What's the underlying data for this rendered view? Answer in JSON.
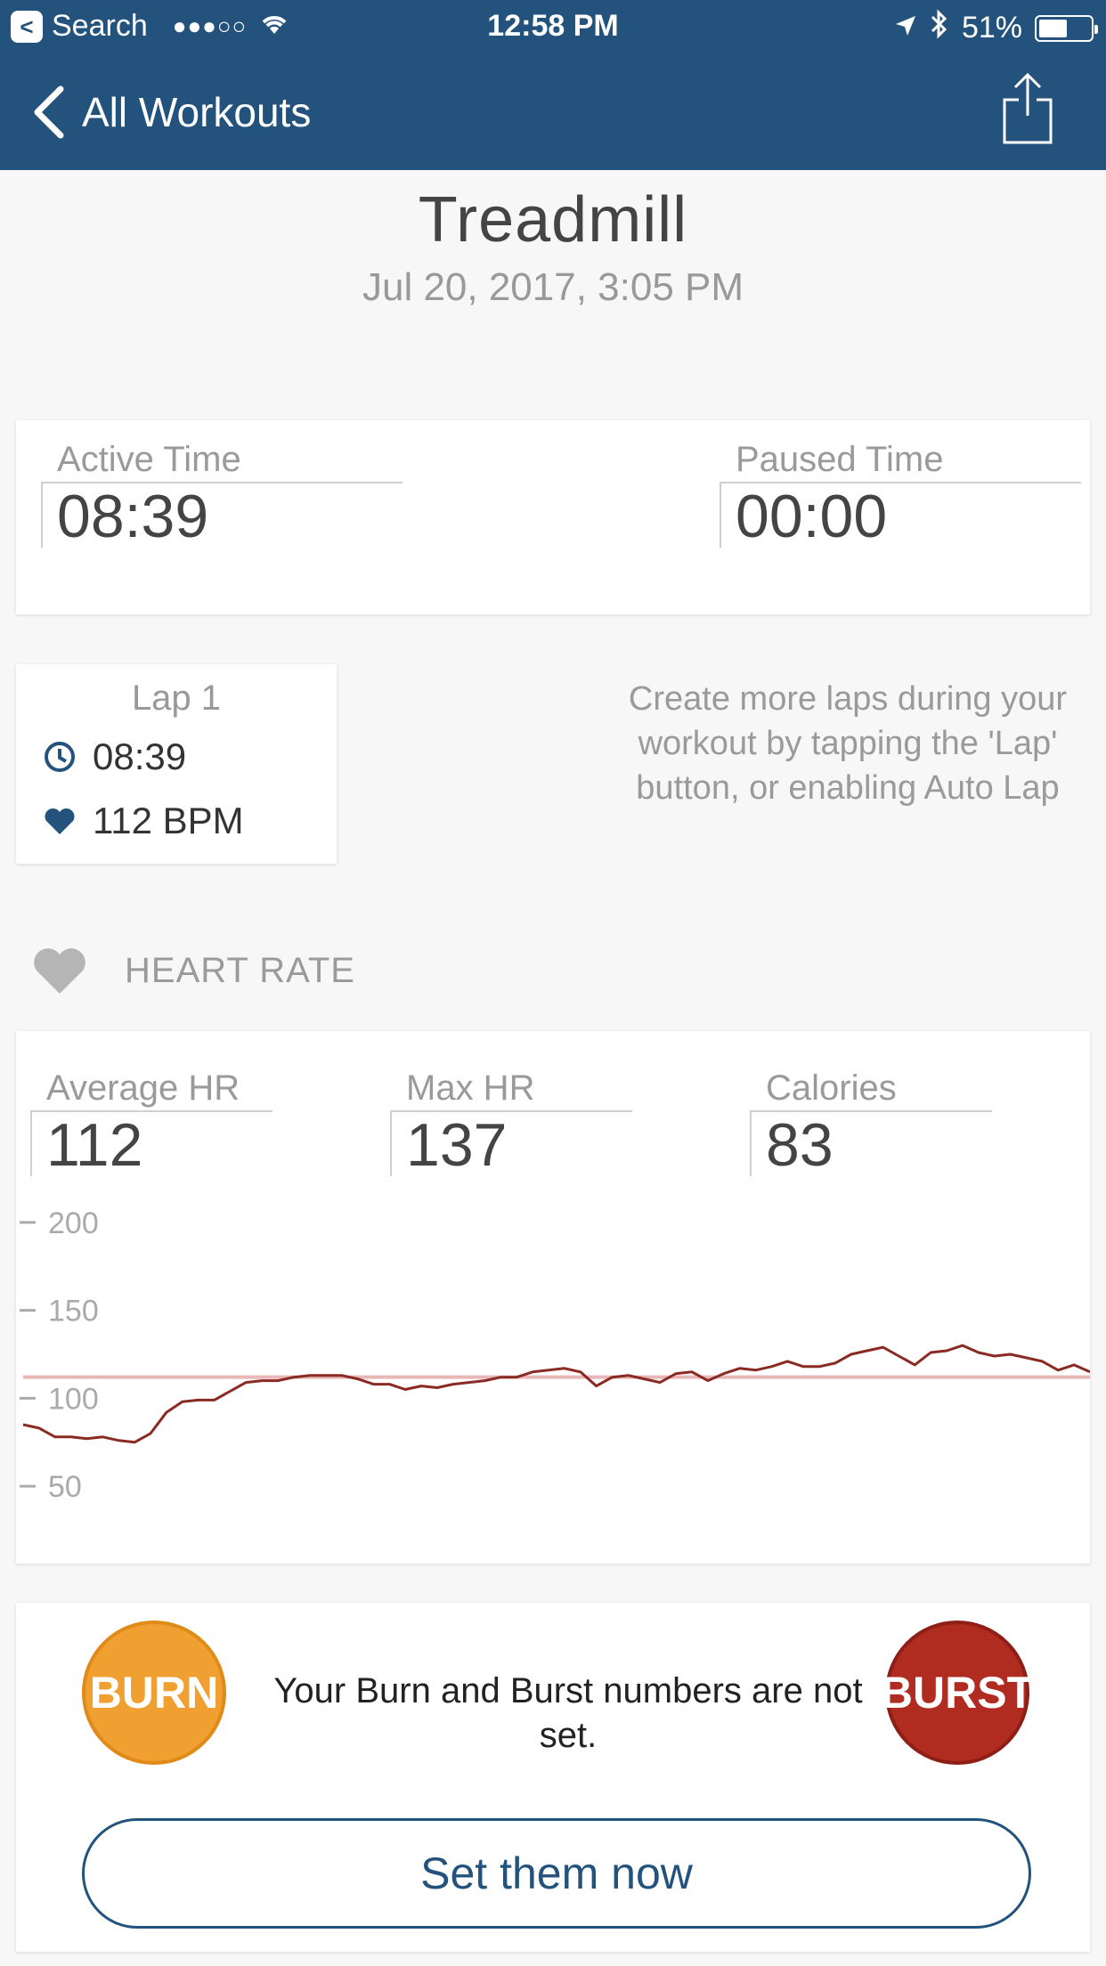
{
  "status_bar": {
    "back_app": "Search",
    "signal": "●●●○○",
    "time": "12:58 PM",
    "battery": "51%",
    "battery_level": 0.51
  },
  "nav": {
    "back_label": "All Workouts"
  },
  "workout": {
    "title": "Treadmill",
    "date": "Jul 20, 2017, 3:05 PM"
  },
  "times": {
    "active_label": "Active Time",
    "active_value": "08:39",
    "paused_label": "Paused Time",
    "paused_value": "00:00"
  },
  "lap": {
    "title": "Lap 1",
    "time": "08:39",
    "bpm": "112 BPM",
    "hint": "Create more laps during your workout by tapping the 'Lap' button, or enabling Auto Lap"
  },
  "heart_rate": {
    "section_label": "HEART RATE",
    "avg_label": "Average HR",
    "avg_value": "112",
    "max_label": "Max HR",
    "max_value": "137",
    "cal_label": "Calories",
    "cal_value": "83"
  },
  "chart_data": {
    "type": "line",
    "title": "",
    "xlabel": "",
    "ylabel": "",
    "ylim": [
      45,
      205
    ],
    "yticks": [
      200,
      150,
      100,
      50
    ],
    "average": 112,
    "series": [
      {
        "name": "",
        "color": "#8b2a22",
        "values": [
          85,
          83,
          78,
          78,
          77,
          78,
          76,
          75,
          80,
          92,
          98,
          99,
          99,
          104,
          109,
          110,
          110,
          112,
          113,
          113,
          113,
          111,
          108,
          108,
          105,
          107,
          106,
          108,
          109,
          110,
          112,
          112,
          115,
          116,
          117,
          115,
          107,
          112,
          113,
          111,
          109,
          114,
          115,
          110,
          114,
          117,
          116,
          118,
          121,
          118,
          118,
          120,
          125,
          127,
          129,
          124,
          119,
          126,
          127,
          130,
          126,
          124,
          125,
          123,
          121,
          116,
          119,
          115
        ]
      }
    ],
    "x_count": 68,
    "avg_color": "#e8b8b8",
    "grid": false,
    "legend": "none"
  },
  "burn": {
    "burn_label": "BURN",
    "burst_label": "BURST",
    "message": "Your Burn and Burst numbers are not set.",
    "button": "Set them now"
  }
}
